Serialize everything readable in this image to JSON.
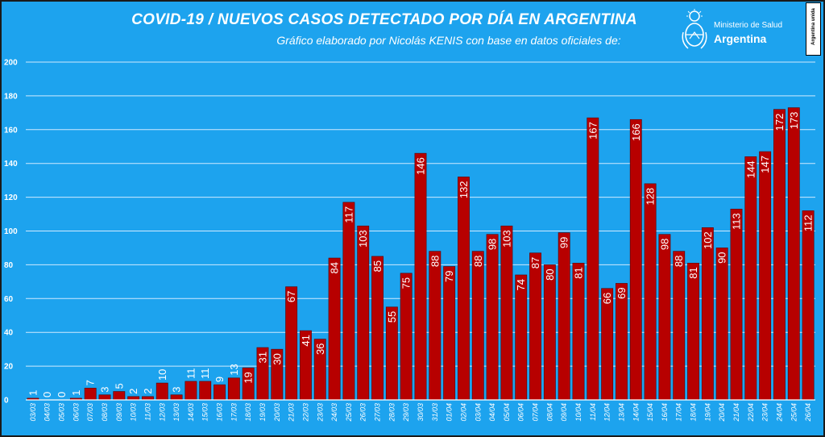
{
  "header": {
    "title": "COVID-19  /  NUEVOS CASOS DETECTADO POR DÍA EN ARGENTINA",
    "subtitle": "Gráfico elaborado por Nicolás KENIS con base en datos oficiales de:"
  },
  "logo": {
    "icon": "coat-of-arms-icon",
    "ministry": "Ministerio de Salud",
    "country": "Argentina"
  },
  "badge": {
    "text": "Argentina unida"
  },
  "colors": {
    "background": "#1da3ee",
    "bar": "#b70000",
    "grid": "#cfeaff"
  },
  "chart_data": {
    "type": "bar",
    "title": "COVID-19  /  NUEVOS CASOS DETECTADO POR DÍA EN ARGENTINA",
    "xlabel": "",
    "ylabel": "",
    "ylim": [
      0,
      200
    ],
    "yticks": [
      0,
      20,
      40,
      60,
      80,
      100,
      120,
      140,
      160,
      180,
      200
    ],
    "grid": true,
    "legend": "none",
    "categories": [
      "03/03",
      "04/03",
      "05/03",
      "06/03",
      "07/03",
      "08/03",
      "09/03",
      "10/03",
      "11/03",
      "12/03",
      "13/03",
      "14/03",
      "15/03",
      "16/03",
      "17/03",
      "18/03",
      "19/03",
      "20/03",
      "21/03",
      "22/03",
      "23/03",
      "24/03",
      "25/03",
      "26/03",
      "27/03",
      "28/03",
      "29/03",
      "30/03",
      "31/03",
      "01/04",
      "02/04",
      "03/04",
      "04/04",
      "05/04",
      "06/04",
      "07/04",
      "08/04",
      "09/04",
      "10/04",
      "11/04",
      "12/04",
      "13/04",
      "14/04",
      "15/04",
      "16/04",
      "17/04",
      "18/04",
      "19/04",
      "20/04",
      "21/04",
      "22/04",
      "23/04",
      "24/04",
      "25/04",
      "26/04"
    ],
    "values": [
      1,
      0,
      0,
      1,
      7,
      3,
      5,
      2,
      2,
      10,
      3,
      11,
      11,
      9,
      13,
      19,
      31,
      30,
      67,
      41,
      36,
      84,
      117,
      103,
      85,
      55,
      75,
      146,
      88,
      79,
      132,
      88,
      98,
      103,
      74,
      87,
      80,
      99,
      81,
      167,
      66,
      69,
      166,
      128,
      98,
      88,
      81,
      102,
      90,
      113,
      144,
      147,
      172,
      173,
      112
    ]
  }
}
